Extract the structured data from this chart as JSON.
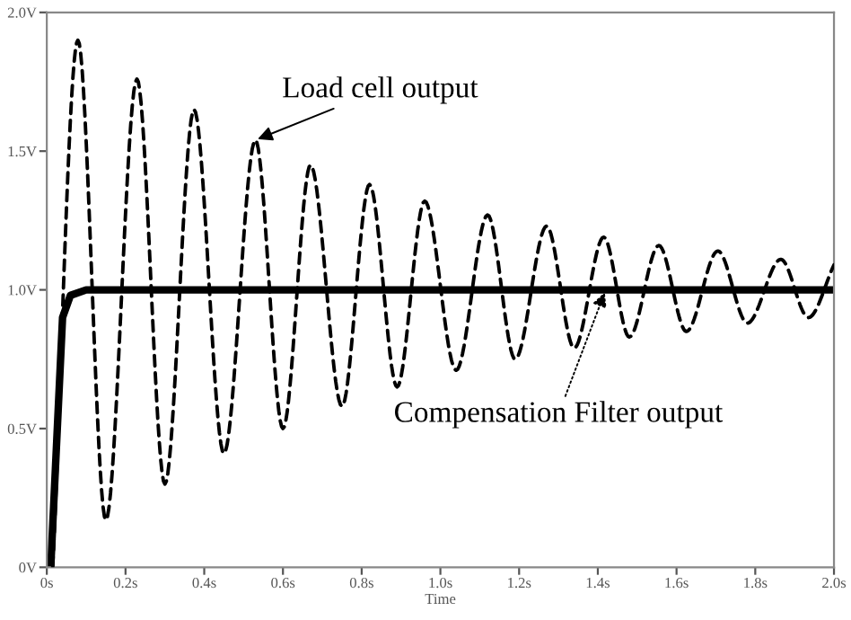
{
  "chart_data": {
    "type": "line",
    "xlabel": "Time",
    "xlim": [
      0,
      2.0
    ],
    "ylim": [
      0,
      2.0
    ],
    "xticks": [
      {
        "value": 0,
        "label": "0s"
      },
      {
        "value": 0.2,
        "label": "0.2s"
      },
      {
        "value": 0.4,
        "label": "0.4s"
      },
      {
        "value": 0.6,
        "label": "0.6s"
      },
      {
        "value": 0.8,
        "label": "0.8s"
      },
      {
        "value": 1.0,
        "label": "1.0s"
      },
      {
        "value": 1.2,
        "label": "1.2s"
      },
      {
        "value": 1.4,
        "label": "1.4s"
      },
      {
        "value": 1.6,
        "label": "1.6s"
      },
      {
        "value": 1.8,
        "label": "1.8s"
      },
      {
        "value": 2.0,
        "label": "2.0s"
      }
    ],
    "yticks": [
      {
        "value": 0,
        "label": "0V"
      },
      {
        "value": 0.5,
        "label": "0.5V"
      },
      {
        "value": 1.0,
        "label": "1.0V"
      },
      {
        "value": 1.5,
        "label": "1.5V"
      },
      {
        "value": 2.0,
        "label": "2.0V"
      }
    ],
    "grid": false,
    "legend": false,
    "marker": "none",
    "series": [
      {
        "color": "#000000",
        "line_style": "dashed",
        "x": [
          0.015,
          0.079,
          0.15,
          0.229,
          0.3,
          0.374,
          0.45,
          0.53,
          0.6,
          0.67,
          0.75,
          0.82,
          0.89,
          0.96,
          1.04,
          1.12,
          1.19,
          1.27,
          1.34,
          1.415,
          1.48,
          1.555,
          1.625,
          1.705,
          1.78,
          1.865,
          1.935,
          2.0
        ],
        "values": [
          0,
          1.9,
          0.17,
          1.76,
          0.3,
          1.65,
          0.41,
          1.54,
          0.5,
          1.45,
          0.58,
          1.38,
          0.65,
          1.32,
          0.71,
          1.27,
          0.75,
          1.23,
          0.79,
          1.19,
          0.83,
          1.16,
          0.85,
          1.14,
          0.88,
          1.11,
          0.9,
          1.09
        ]
      },
      {
        "color": "#000000",
        "line_style": "solid",
        "x": [
          0.01,
          0.04,
          0.06,
          0.1,
          2.0
        ],
        "values": [
          0,
          0.9,
          0.98,
          1.0,
          1.0
        ]
      }
    ],
    "annotations": [
      {
        "text": "Load cell output",
        "x": 0.53,
        "y": 1.54
      },
      {
        "text": "Compensation Filter output",
        "x": 1.42,
        "y": 1.0
      }
    ]
  }
}
